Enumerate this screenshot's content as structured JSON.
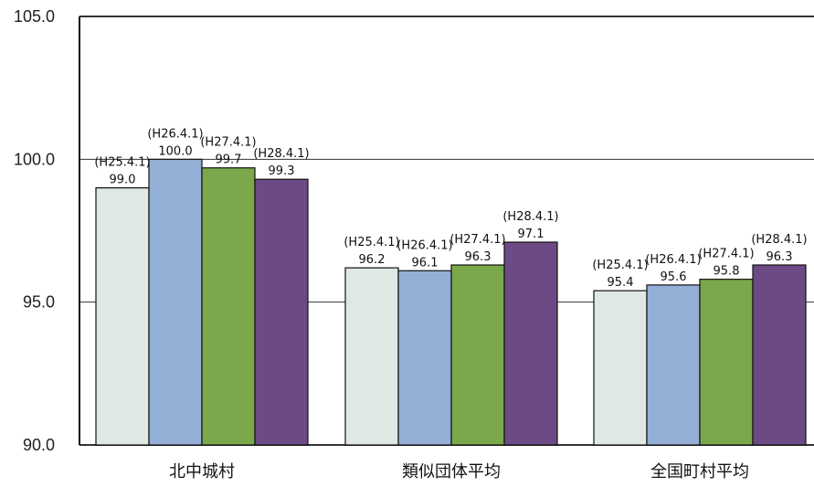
{
  "chart_data": {
    "type": "bar",
    "title": "",
    "xlabel": "",
    "ylabel": "",
    "ylim": [
      90.0,
      105.0
    ],
    "yticks": [
      "90.0",
      "95.0",
      "100.0",
      "105.0"
    ],
    "ytick_values": [
      90,
      95,
      100,
      105
    ],
    "grid": "horizontal",
    "categories": [
      "北中城村",
      "類似団体平均",
      "全国町村平均"
    ],
    "series": [
      {
        "name": "(H25.4.1)",
        "color": "#dfe8e2",
        "values": [
          99.0,
          96.2,
          95.4
        ],
        "labels": [
          "99.0",
          "96.2",
          "95.4"
        ]
      },
      {
        "name": "(H26.4.1)",
        "color": "#93afd6",
        "values": [
          100.0,
          96.1,
          95.6
        ],
        "labels": [
          "100.0",
          "96.1",
          "95.6"
        ]
      },
      {
        "name": "(H27.4.1)",
        "color": "#7aa84a",
        "values": [
          99.7,
          96.3,
          95.8
        ],
        "labels": [
          "99.7",
          "96.3",
          "95.8"
        ]
      },
      {
        "name": "(H28.4.1)",
        "color": "#6c4a86",
        "values": [
          99.3,
          97.1,
          96.3
        ],
        "labels": [
          "99.3",
          "97.1",
          "96.3"
        ]
      }
    ]
  }
}
